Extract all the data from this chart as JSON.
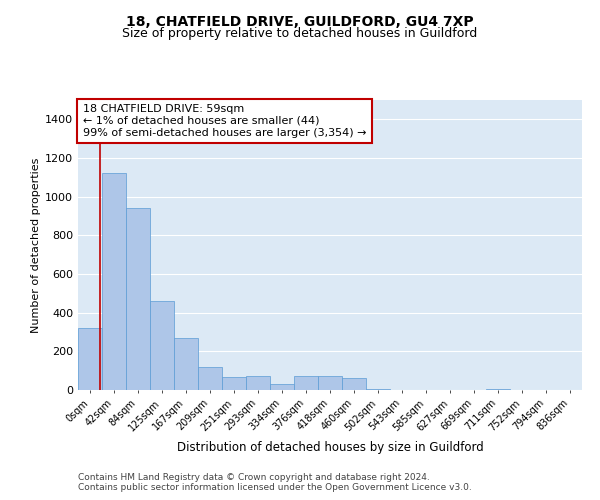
{
  "title1": "18, CHATFIELD DRIVE, GUILDFORD, GU4 7XP",
  "title2": "Size of property relative to detached houses in Guildford",
  "xlabel": "Distribution of detached houses by size in Guildford",
  "ylabel": "Number of detached properties",
  "bar_labels": [
    "0sqm",
    "42sqm",
    "84sqm",
    "125sqm",
    "167sqm",
    "209sqm",
    "251sqm",
    "293sqm",
    "334sqm",
    "376sqm",
    "418sqm",
    "460sqm",
    "502sqm",
    "543sqm",
    "585sqm",
    "627sqm",
    "669sqm",
    "711sqm",
    "752sqm",
    "794sqm",
    "836sqm"
  ],
  "bar_heights": [
    320,
    1120,
    940,
    460,
    270,
    120,
    65,
    70,
    30,
    70,
    70,
    60,
    5,
    0,
    0,
    0,
    0,
    5,
    0,
    0,
    0
  ],
  "bar_color": "#aec6e8",
  "bar_edge_color": "#5b9bd5",
  "background_color": "#dce9f5",
  "grid_color": "#ffffff",
  "vline_color": "#c00000",
  "annotation_text": "18 CHATFIELD DRIVE: 59sqm\n← 1% of detached houses are smaller (44)\n99% of semi-detached houses are larger (3,354) →",
  "annotation_box_color": "#c00000",
  "ylim": [
    0,
    1500
  ],
  "yticks": [
    0,
    200,
    400,
    600,
    800,
    1000,
    1200,
    1400
  ],
  "footer": "Contains HM Land Registry data © Crown copyright and database right 2024.\nContains public sector information licensed under the Open Government Licence v3.0.",
  "title1_fontsize": 10,
  "title2_fontsize": 9,
  "xlabel_fontsize": 8.5,
  "ylabel_fontsize": 8,
  "annotation_fontsize": 8,
  "footer_fontsize": 6.5
}
